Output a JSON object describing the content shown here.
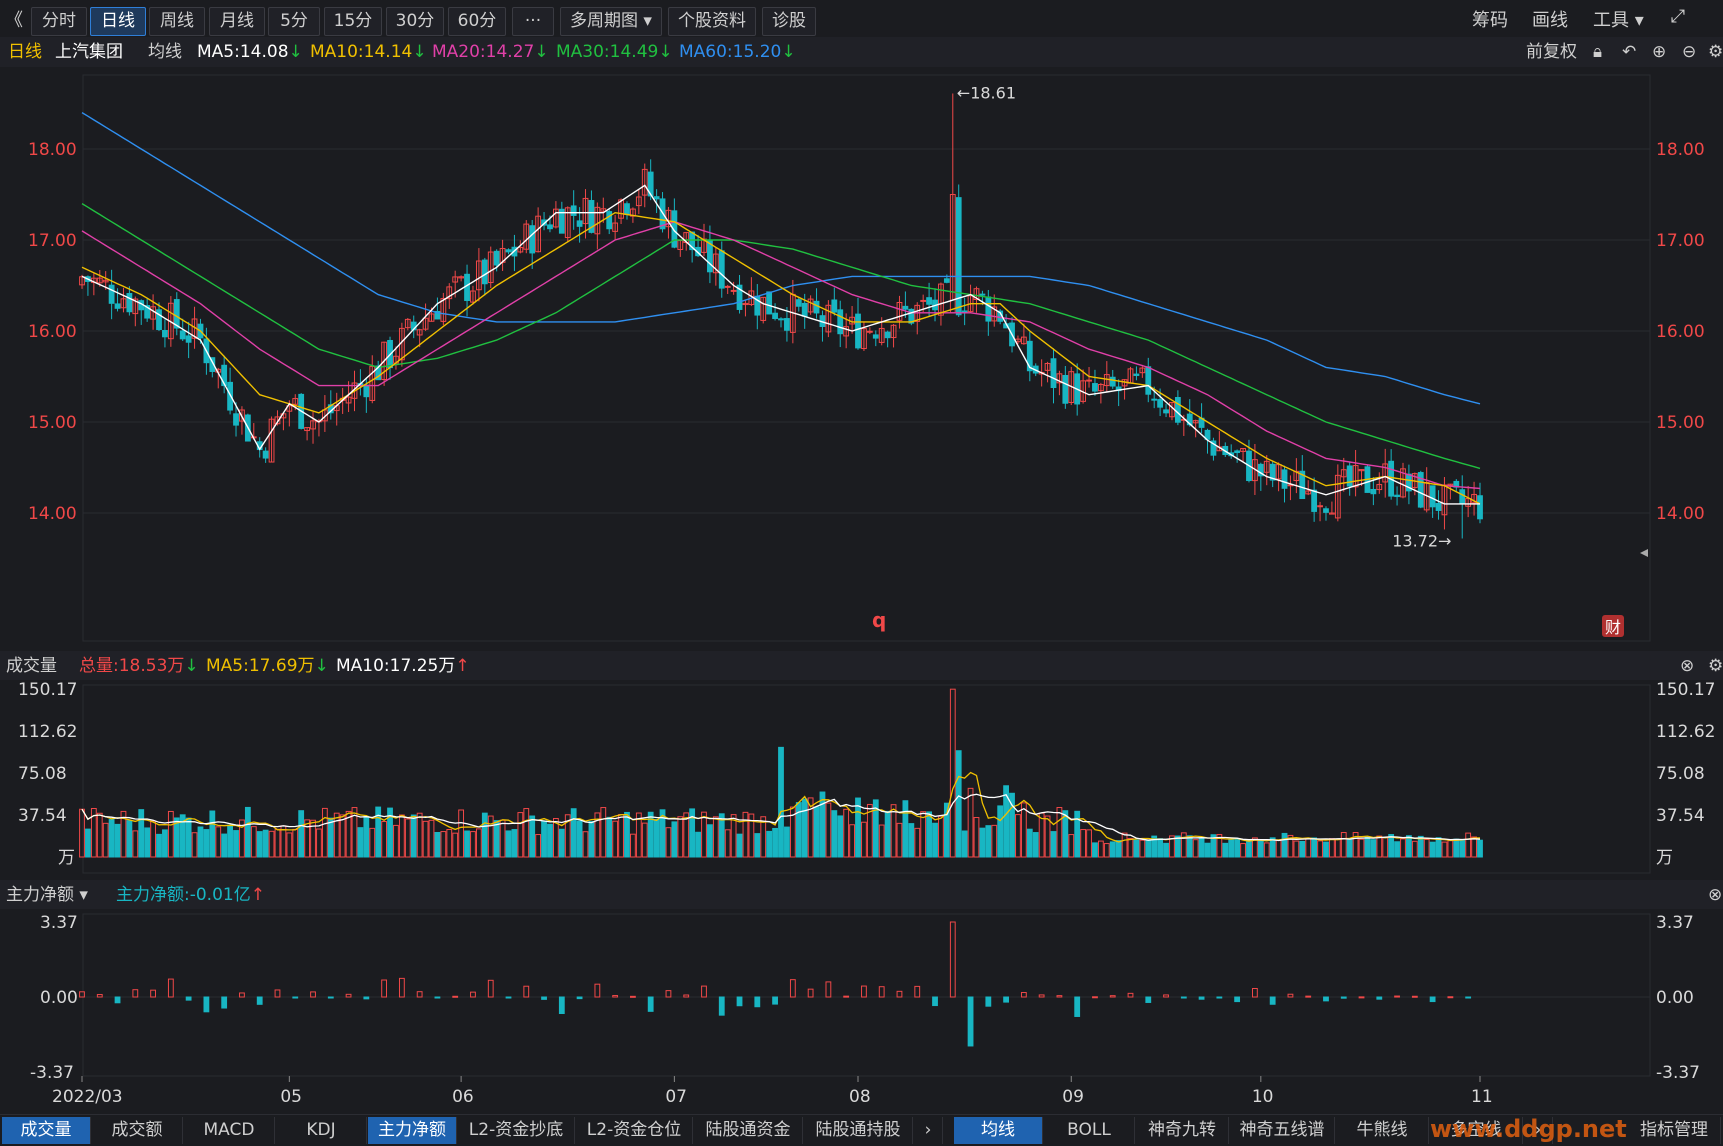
{
  "toolbar": {
    "collapse_icon": "《",
    "buttons": [
      "分时",
      "日线",
      "周线",
      "月线",
      "5分",
      "15分",
      "30分",
      "60分",
      "···",
      "多周期图 ▾",
      "个股资料",
      "诊股"
    ],
    "active": "日线",
    "right": [
      "筹码",
      "画线",
      "工具 ▾"
    ]
  },
  "info": {
    "period": "日线",
    "stock": "上汽集团",
    "ma_label": "均线",
    "ma5": "MA5:14.08",
    "ma10": "MA10:14.14",
    "ma20": "MA20:14.27",
    "ma30": "MA30:14.49",
    "ma60": "MA60:15.20",
    "adjust": "前复权"
  },
  "volume_info": {
    "title": "成交量",
    "total": "总量:18.53万",
    "ma5": "MA5:17.69万",
    "ma10": "MA10:17.25万"
  },
  "flow_info": {
    "title": "主力净额 ▾",
    "value": "主力净额:-0.01亿"
  },
  "colors": {
    "up": "#f04848",
    "down": "#18b6c3",
    "ma5": "#ffffff",
    "ma10": "#f0c000",
    "ma20": "#e040a8",
    "ma30": "#20c040",
    "ma60": "#2f8ff0"
  },
  "chart_data": {
    "type": "candlestick",
    "price_axis": {
      "ticks": [
        "18.00",
        "17.00",
        "16.00",
        "15.00",
        "14.00"
      ],
      "ylim": [
        13.3,
        18.8
      ]
    },
    "annotations": {
      "high": "18.61",
      "low": "13.72",
      "marker": "q",
      "fin_badge": "财"
    },
    "x_ticks": [
      "2022/03",
      "05",
      "06",
      "07",
      "08",
      "09",
      "10",
      "11"
    ],
    "ma_lines": {
      "ma5": [
        [
          0,
          16.6
        ],
        [
          10,
          16.3
        ],
        [
          20,
          15.9
        ],
        [
          25,
          15.3
        ],
        [
          30,
          14.7
        ],
        [
          35,
          15.2
        ],
        [
          40,
          15.0
        ],
        [
          50,
          15.6
        ],
        [
          60,
          16.3
        ],
        [
          70,
          16.7
        ],
        [
          80,
          17.3
        ],
        [
          88,
          17.3
        ],
        [
          95,
          17.6
        ],
        [
          100,
          17.1
        ],
        [
          105,
          16.8
        ],
        [
          110,
          16.5
        ],
        [
          115,
          16.3
        ],
        [
          125,
          16.1
        ],
        [
          130,
          16.0
        ],
        [
          140,
          16.2
        ],
        [
          150,
          16.4
        ],
        [
          155,
          16.2
        ],
        [
          160,
          15.6
        ],
        [
          170,
          15.3
        ],
        [
          180,
          15.4
        ],
        [
          190,
          14.8
        ],
        [
          200,
          14.4
        ],
        [
          210,
          14.2
        ],
        [
          220,
          14.4
        ],
        [
          230,
          14.1
        ],
        [
          236,
          14.1
        ]
      ],
      "ma10": [
        [
          0,
          16.7
        ],
        [
          10,
          16.4
        ],
        [
          20,
          16.0
        ],
        [
          30,
          15.3
        ],
        [
          40,
          15.1
        ],
        [
          50,
          15.5
        ],
        [
          60,
          16.0
        ],
        [
          70,
          16.5
        ],
        [
          80,
          16.9
        ],
        [
          90,
          17.3
        ],
        [
          100,
          17.2
        ],
        [
          110,
          16.8
        ],
        [
          120,
          16.4
        ],
        [
          130,
          16.1
        ],
        [
          140,
          16.1
        ],
        [
          150,
          16.3
        ],
        [
          155,
          16.3
        ],
        [
          160,
          16.0
        ],
        [
          170,
          15.5
        ],
        [
          180,
          15.4
        ],
        [
          190,
          15.0
        ],
        [
          200,
          14.6
        ],
        [
          210,
          14.3
        ],
        [
          220,
          14.4
        ],
        [
          230,
          14.3
        ],
        [
          236,
          14.1
        ]
      ],
      "ma20": [
        [
          0,
          17.1
        ],
        [
          10,
          16.7
        ],
        [
          20,
          16.3
        ],
        [
          30,
          15.8
        ],
        [
          40,
          15.4
        ],
        [
          50,
          15.4
        ],
        [
          60,
          15.8
        ],
        [
          70,
          16.2
        ],
        [
          80,
          16.6
        ],
        [
          90,
          17.0
        ],
        [
          100,
          17.2
        ],
        [
          110,
          17.0
        ],
        [
          120,
          16.7
        ],
        [
          130,
          16.4
        ],
        [
          140,
          16.2
        ],
        [
          150,
          16.2
        ],
        [
          160,
          16.1
        ],
        [
          170,
          15.8
        ],
        [
          180,
          15.6
        ],
        [
          190,
          15.3
        ],
        [
          200,
          14.9
        ],
        [
          210,
          14.6
        ],
        [
          220,
          14.5
        ],
        [
          230,
          14.3
        ],
        [
          236,
          14.27
        ]
      ],
      "ma30": [
        [
          0,
          17.4
        ],
        [
          10,
          17.0
        ],
        [
          20,
          16.6
        ],
        [
          30,
          16.2
        ],
        [
          40,
          15.8
        ],
        [
          50,
          15.6
        ],
        [
          60,
          15.7
        ],
        [
          70,
          15.9
        ],
        [
          80,
          16.2
        ],
        [
          90,
          16.6
        ],
        [
          100,
          17.0
        ],
        [
          110,
          17.0
        ],
        [
          120,
          16.9
        ],
        [
          130,
          16.7
        ],
        [
          140,
          16.5
        ],
        [
          150,
          16.4
        ],
        [
          160,
          16.3
        ],
        [
          170,
          16.1
        ],
        [
          180,
          15.9
        ],
        [
          190,
          15.6
        ],
        [
          200,
          15.3
        ],
        [
          210,
          15.0
        ],
        [
          220,
          14.8
        ],
        [
          230,
          14.6
        ],
        [
          236,
          14.49
        ]
      ],
      "ma60": [
        [
          0,
          18.4
        ],
        [
          10,
          18.0
        ],
        [
          20,
          17.6
        ],
        [
          30,
          17.2
        ],
        [
          40,
          16.8
        ],
        [
          50,
          16.4
        ],
        [
          60,
          16.2
        ],
        [
          70,
          16.1
        ],
        [
          80,
          16.1
        ],
        [
          90,
          16.1
        ],
        [
          100,
          16.2
        ],
        [
          110,
          16.3
        ],
        [
          120,
          16.5
        ],
        [
          130,
          16.6
        ],
        [
          140,
          16.6
        ],
        [
          150,
          16.6
        ],
        [
          160,
          16.6
        ],
        [
          170,
          16.5
        ],
        [
          180,
          16.3
        ],
        [
          190,
          16.1
        ],
        [
          200,
          15.9
        ],
        [
          210,
          15.6
        ],
        [
          220,
          15.5
        ],
        [
          230,
          15.3
        ],
        [
          236,
          15.2
        ]
      ]
    },
    "volume_axis": {
      "ticks": [
        "150.17",
        "112.62",
        "75.08",
        "37.54",
        "万"
      ],
      "ylim": [
        0,
        150.17
      ]
    },
    "flow_axis": {
      "ticks": [
        "3.37",
        "0.00",
        "-3.37"
      ],
      "ylim": [
        -3.37,
        3.37
      ]
    }
  },
  "tabs_left": [
    "成交量",
    "成交额",
    "MACD",
    "KDJ",
    "主力净额",
    "L2-资金抄底",
    "L2-资金仓位",
    "陆股通资金",
    "陆股通持股"
  ],
  "tabs_left_active": [
    "成交量",
    "主力净额"
  ],
  "tabs_right": [
    "均线",
    "BOLL",
    "神奇九转",
    "神奇五线谱",
    "牛熊线",
    "多空线",
    "指标管理"
  ],
  "tabs_right_active": "均线",
  "watermark": "www.ddgp.net"
}
